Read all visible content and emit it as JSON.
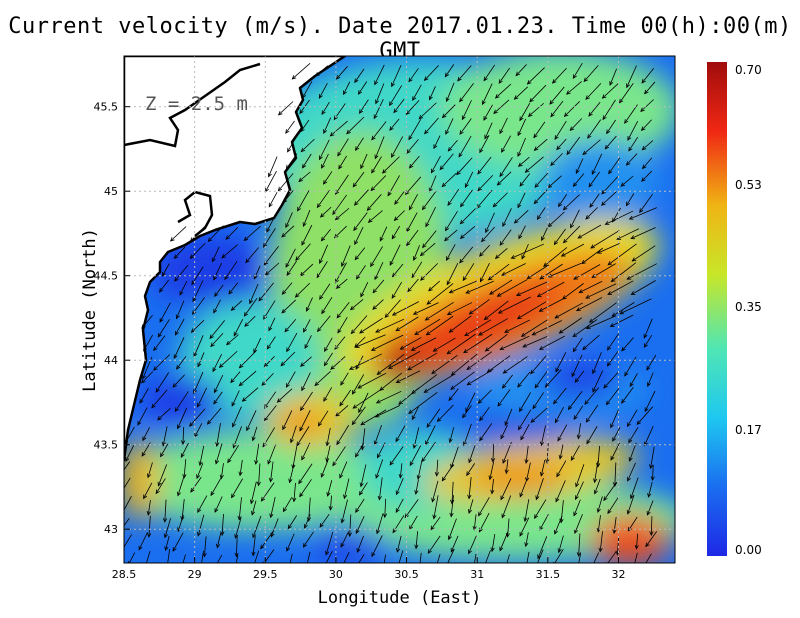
{
  "title": "Current velocity (m/s). Date 2017.01.23. Time 00(h):00(m) GMT",
  "depth_label": "Z = 2.5 m",
  "map": {
    "xlabel": "Longitude (East)",
    "ylabel": "Latitude (North)",
    "lon_range": [
      28.5,
      32.4
    ],
    "lat_range": [
      42.8,
      45.8
    ],
    "lon_ticks": [
      "28.5",
      "29",
      "29.5",
      "30",
      "30.5",
      "31",
      "31.5",
      "32"
    ],
    "lat_ticks": [
      "43",
      "43.5",
      "44",
      "44.5",
      "45",
      "45.5"
    ],
    "grid": true
  },
  "colorbar": {
    "range": [
      0.0,
      0.7
    ],
    "ticks": [
      "0.70",
      "0.53",
      "0.35",
      "0.17",
      "0.00"
    ],
    "colormap": [
      "#1e28e6",
      "#1a6ef0",
      "#1ec8f0",
      "#50e6b4",
      "#c8e628",
      "#f0b414",
      "#f02814",
      "#a00c0c"
    ]
  },
  "colors": {
    "land": "#ffffff",
    "coast": "#000000",
    "arrow": "#000000"
  }
}
